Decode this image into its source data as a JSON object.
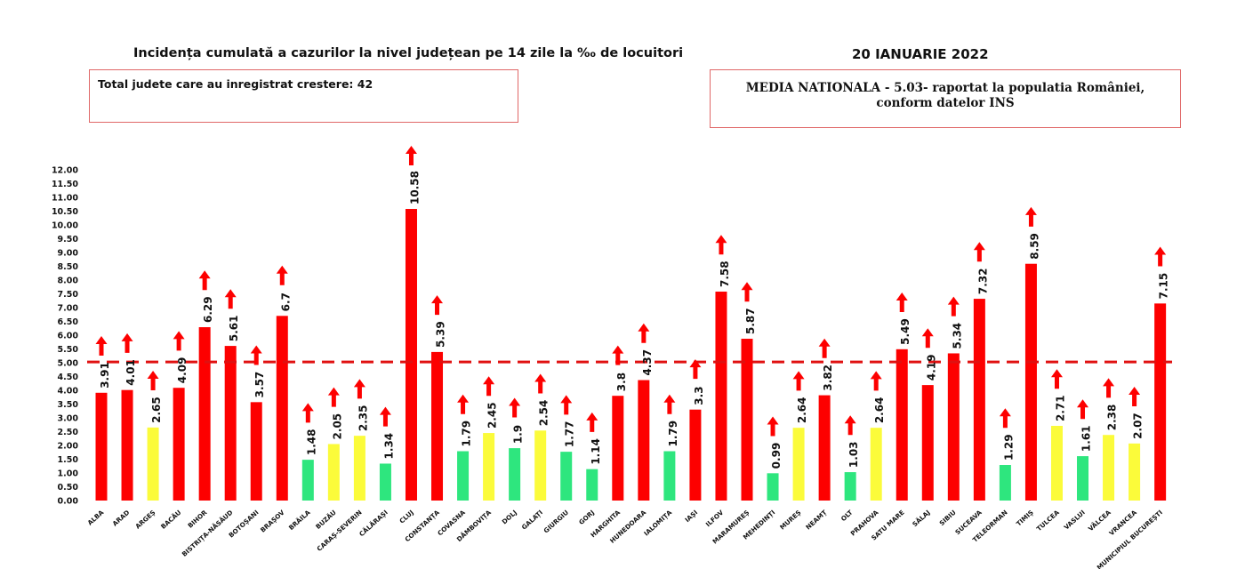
{
  "header": {
    "title": "Incidența cumulată a cazurilor la nivel județean pe 14 zile la ‰ de locuitori",
    "date": "20 IANUARIE 2022"
  },
  "info_left": {
    "text": "Total judete care au inregistrat crestere: 42"
  },
  "info_right": {
    "line1": "MEDIA NATIONALA - 5.03-  raportat la populatia României,",
    "line2": "conform datelor INS"
  },
  "colors": {
    "red": "#fd0000",
    "yellow": "#fbfb3a",
    "green": "#2ee67e",
    "arrow": "#fd0000",
    "reference_line": "#e01010"
  },
  "chart_data": {
    "type": "bar",
    "title": "Incidența cumulată a cazurilor la nivel județean pe 14 zile la ‰ de locuitori",
    "xlabel": "",
    "ylabel": "",
    "ylim": [
      0,
      12
    ],
    "ytick_step": 0.5,
    "grid": false,
    "reference_line": 5.03,
    "categories": [
      "ALBA",
      "ARAD",
      "ARGEȘ",
      "BACĂU",
      "BIHOR",
      "BISTRIȚA-NĂSĂUD",
      "BOTOȘANI",
      "BRAȘOV",
      "BRĂILA",
      "BUZĂU",
      "CARAȘ-SEVERIN",
      "CĂLĂRAȘI",
      "CLUJ",
      "CONSTANȚA",
      "COVASNA",
      "DÂMBOVIȚA",
      "DOLJ",
      "GALAȚI",
      "GIURGIU",
      "GORJ",
      "HARGHITA",
      "HUNEDOARA",
      "IALOMIȚA",
      "IAȘI",
      "ILFOV",
      "MARAMUREȘ",
      "MEHEDINȚI",
      "MUREȘ",
      "NEAMȚ",
      "OLT",
      "PRAHOVA",
      "SATU MARE",
      "SĂLAJ",
      "SIBIU",
      "SUCEAVA",
      "TELEORMAN",
      "TIMIȘ",
      "TULCEA",
      "VASLUI",
      "VÂLCEA",
      "VRANCEA",
      "MUNICIPIUL BUCUREȘTI"
    ],
    "values": [
      3.91,
      4.01,
      2.65,
      4.09,
      6.29,
      5.61,
      3.57,
      6.7,
      1.48,
      2.05,
      2.35,
      1.34,
      10.58,
      5.39,
      1.79,
      2.45,
      1.9,
      2.54,
      1.77,
      1.14,
      3.8,
      4.37,
      1.79,
      3.3,
      7.58,
      5.87,
      0.99,
      2.64,
      3.82,
      1.03,
      2.64,
      5.49,
      4.19,
      5.34,
      7.32,
      1.29,
      8.59,
      2.71,
      1.61,
      2.38,
      2.07,
      7.15
    ],
    "labels": [
      "3.91",
      "4.01",
      "2.65",
      "4.09",
      "6.29",
      "5.61",
      "3.57",
      "6.7",
      "1.48",
      "2.05",
      "2.35",
      "1.34",
      "10.58",
      "5.39",
      "1.79",
      "2.45",
      "1.9",
      "2.54",
      "1.77",
      "1.14",
      "3.8",
      "4.37",
      "1.79",
      "3.3",
      "7.58",
      "5.87",
      "0.99",
      "2.64",
      "3.82",
      "1.03",
      "2.64",
      "5.49",
      "4.19",
      "5.34",
      "7.32",
      "1.29",
      "8.59",
      "2.71",
      "1.61",
      "2.38",
      "2.07",
      "7.15"
    ],
    "bar_colors": [
      "red",
      "red",
      "yellow",
      "red",
      "red",
      "red",
      "red",
      "red",
      "green",
      "yellow",
      "yellow",
      "green",
      "red",
      "red",
      "green",
      "yellow",
      "green",
      "yellow",
      "green",
      "green",
      "red",
      "red",
      "green",
      "red",
      "red",
      "red",
      "green",
      "yellow",
      "red",
      "green",
      "yellow",
      "red",
      "red",
      "red",
      "red",
      "green",
      "red",
      "yellow",
      "green",
      "yellow",
      "yellow",
      "red"
    ],
    "y_tick_labels": [
      "0.00",
      "0.50",
      "1.00",
      "1.50",
      "2.00",
      "2.50",
      "3.00",
      "3.50",
      "4.00",
      "4.50",
      "5.00",
      "5.50",
      "6.00",
      "6.50",
      "7.00",
      "7.50",
      "8.00",
      "8.50",
      "9.00",
      "9.50",
      "10.00",
      "10.50",
      "11.00",
      "11.50",
      "12.00"
    ],
    "annotations": "up-arrow above each bar indicating increase"
  }
}
